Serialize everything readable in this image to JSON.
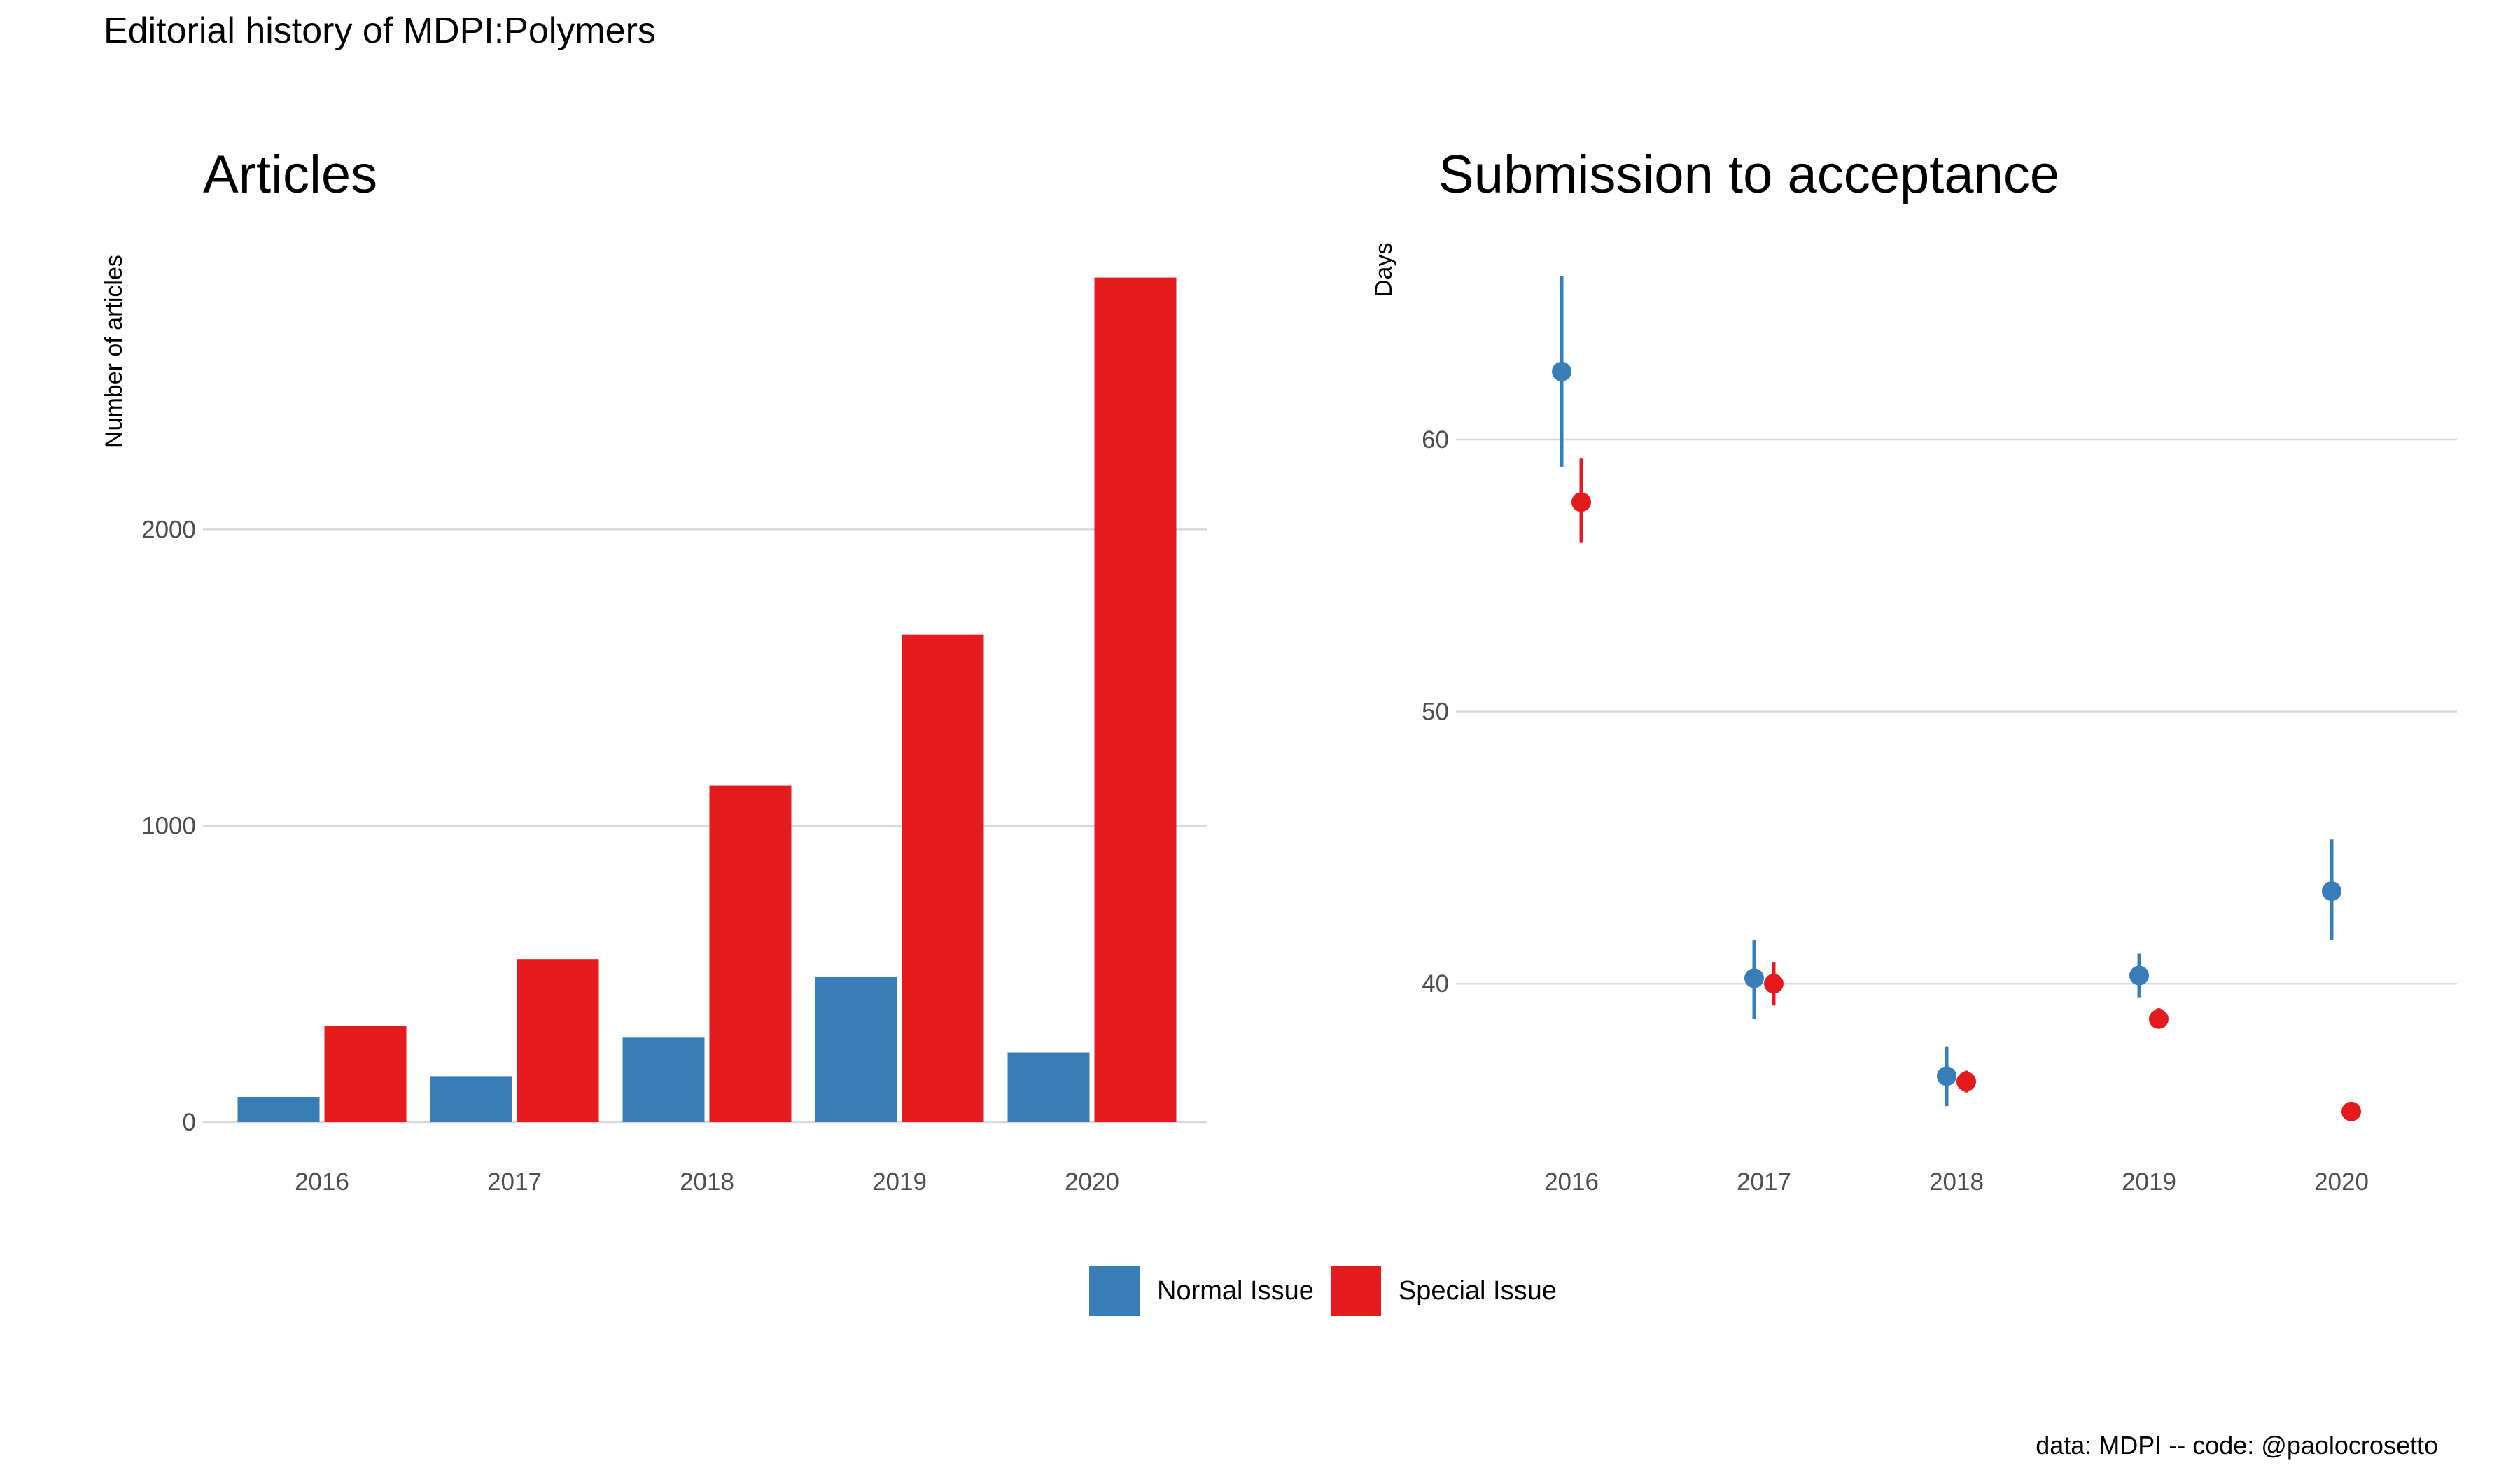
{
  "title": "Editorial history of MDPI:Polymers",
  "caption": "data: MDPI -- code: @paolocrosetto",
  "colors": {
    "normal": "#377EB8",
    "special": "#E41A1C"
  },
  "legend": [
    {
      "name": "Normal Issue",
      "color": "#377EB8"
    },
    {
      "name": "Special Issue",
      "color": "#E41A1C"
    }
  ],
  "chart_data": [
    {
      "type": "bar",
      "title": "Articles",
      "xlabel": "",
      "ylabel": "Number of articles",
      "categories": [
        "2016",
        "2017",
        "2018",
        "2019",
        "2020"
      ],
      "series": [
        {
          "name": "Normal Issue",
          "values": [
            85,
            155,
            285,
            490,
            235
          ]
        },
        {
          "name": "Special Issue",
          "values": [
            325,
            550,
            1135,
            1645,
            2850
          ]
        }
      ],
      "yticks": [
        0,
        1000,
        2000
      ],
      "ylim": [
        0,
        2850
      ],
      "grid": true,
      "legend_position": "bottom"
    },
    {
      "type": "scatter",
      "title": "Submission to acceptance",
      "xlabel": "",
      "ylabel": "Days",
      "categories": [
        "2016",
        "2017",
        "2018",
        "2019",
        "2020"
      ],
      "series": [
        {
          "name": "Normal Issue",
          "values": [
            62.5,
            40.2,
            36.6,
            40.3,
            43.4
          ],
          "lower": [
            59.0,
            38.7,
            35.5,
            39.5,
            41.6
          ],
          "upper": [
            66.0,
            41.6,
            37.7,
            41.1,
            45.3
          ]
        },
        {
          "name": "Special Issue",
          "values": [
            57.7,
            40.0,
            36.4,
            38.7,
            35.3
          ],
          "lower": [
            56.2,
            39.2,
            36.0,
            38.4,
            35.1
          ],
          "upper": [
            59.3,
            40.8,
            36.8,
            39.1,
            35.5
          ]
        }
      ],
      "yticks": [
        40,
        50,
        60
      ],
      "ylim": [
        34,
        66
      ],
      "grid": true,
      "legend_position": "bottom"
    }
  ]
}
